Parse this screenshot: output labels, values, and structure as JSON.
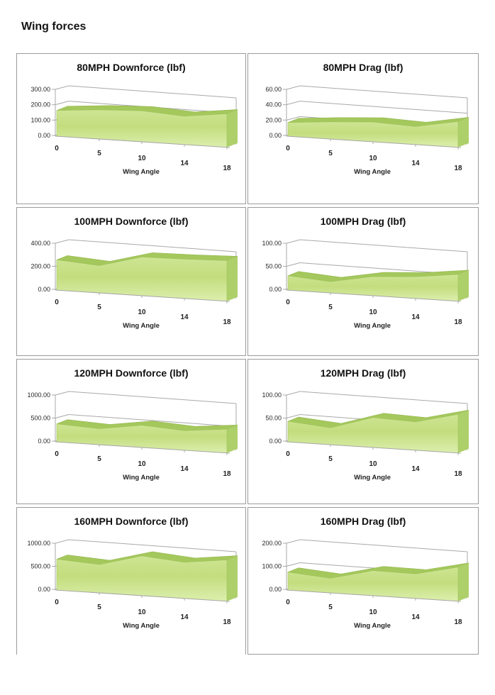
{
  "page": {
    "title": "Wing forces"
  },
  "colors": {
    "grid_line": "#a9a9a9",
    "panel_border": "#9b9b9b",
    "ribbon_top_band": "#a4c85c",
    "ribbon_top_band_edge": "#8eb248",
    "ribbon_face_highlight": "#cde593",
    "ribbon_face_mid": "#c3dd7e",
    "ribbon_face_bottom": "#dcefad",
    "ribbon_side": "#aed06b",
    "ribbon_face_edge": "#9fc25c",
    "label_text": "#1f1f1f"
  },
  "chart_data": [
    {
      "type": "area",
      "projection": "3d",
      "title": "80MPH Downforce (lbf)",
      "xlabel": "Wing Angle",
      "categories": [
        0,
        5,
        10,
        14,
        18
      ],
      "values": [
        150,
        170,
        180,
        165,
        195
      ],
      "ylim": [
        0,
        300
      ],
      "yticks": [
        0,
        100,
        200,
        300
      ],
      "ytick_format": "0.00",
      "grid": true,
      "legend": null
    },
    {
      "type": "area",
      "projection": "3d",
      "title": "80MPH Drag (lbf)",
      "xlabel": "Wing Angle",
      "categories": [
        0,
        5,
        10,
        14,
        18
      ],
      "values": [
        16,
        20,
        23,
        21,
        30
      ],
      "ylim": [
        0,
        60
      ],
      "yticks": [
        0,
        20,
        40,
        60
      ],
      "ytick_format": "0.00",
      "grid": true,
      "legend": null
    },
    {
      "type": "area",
      "projection": "3d",
      "title": "100MPH Downforce (lbf)",
      "xlabel": "Wing Angle",
      "categories": [
        0,
        5,
        10,
        14,
        18
      ],
      "values": [
        235,
        212,
        300,
        305,
        315
      ],
      "ylim": [
        0,
        400
      ],
      "yticks": [
        0,
        200,
        400
      ],
      "ytick_format": "0.00",
      "grid": true,
      "legend": null
    },
    {
      "type": "area",
      "projection": "3d",
      "title": "100MPH Drag (lbf)",
      "xlabel": "Wing Angle",
      "categories": [
        0,
        5,
        10,
        14,
        18
      ],
      "values": [
        28,
        22,
        37,
        42,
        52
      ],
      "ylim": [
        0,
        100
      ],
      "yticks": [
        0,
        50,
        100
      ],
      "ytick_format": "0.00",
      "grid": true,
      "legend": null
    },
    {
      "type": "area",
      "projection": "3d",
      "title": "120MPH Downforce (lbf)",
      "xlabel": "Wing Angle",
      "categories": [
        0,
        5,
        10,
        14,
        18
      ],
      "values": [
        350,
        310,
        430,
        380,
        460
      ],
      "ylim": [
        0,
        1000
      ],
      "yticks": [
        0,
        500,
        1000
      ],
      "ytick_format": "0.00",
      "grid": true,
      "legend": null
    },
    {
      "type": "area",
      "projection": "3d",
      "title": "120MPH Drag (lbf)",
      "xlabel": "Wing Angle",
      "categories": [
        0,
        5,
        10,
        14,
        18
      ],
      "values": [
        40,
        33,
        58,
        55,
        75
      ],
      "ylim": [
        0,
        100
      ],
      "yticks": [
        0,
        50,
        100
      ],
      "ytick_format": "0.00",
      "grid": true,
      "legend": null
    },
    {
      "type": "area",
      "projection": "3d",
      "title": "160MPH Downforce (lbf)",
      "xlabel": "Wing Angle",
      "categories": [
        0,
        5,
        10,
        14,
        18
      ],
      "values": [
        600,
        550,
        770,
        700,
        800
      ],
      "ylim": [
        0,
        1000
      ],
      "yticks": [
        0,
        500,
        1000
      ],
      "ytick_format": "0.00",
      "grid": true,
      "legend": null
    },
    {
      "type": "area",
      "projection": "3d",
      "title": "160MPH Drag (lbf)",
      "xlabel": "Wing Angle",
      "categories": [
        0,
        5,
        10,
        14,
        18
      ],
      "values": [
        70,
        57,
        97,
        95,
        132
      ],
      "ylim": [
        0,
        200
      ],
      "yticks": [
        0,
        100,
        200
      ],
      "ytick_format": "0.00",
      "grid": true,
      "legend": null
    }
  ]
}
